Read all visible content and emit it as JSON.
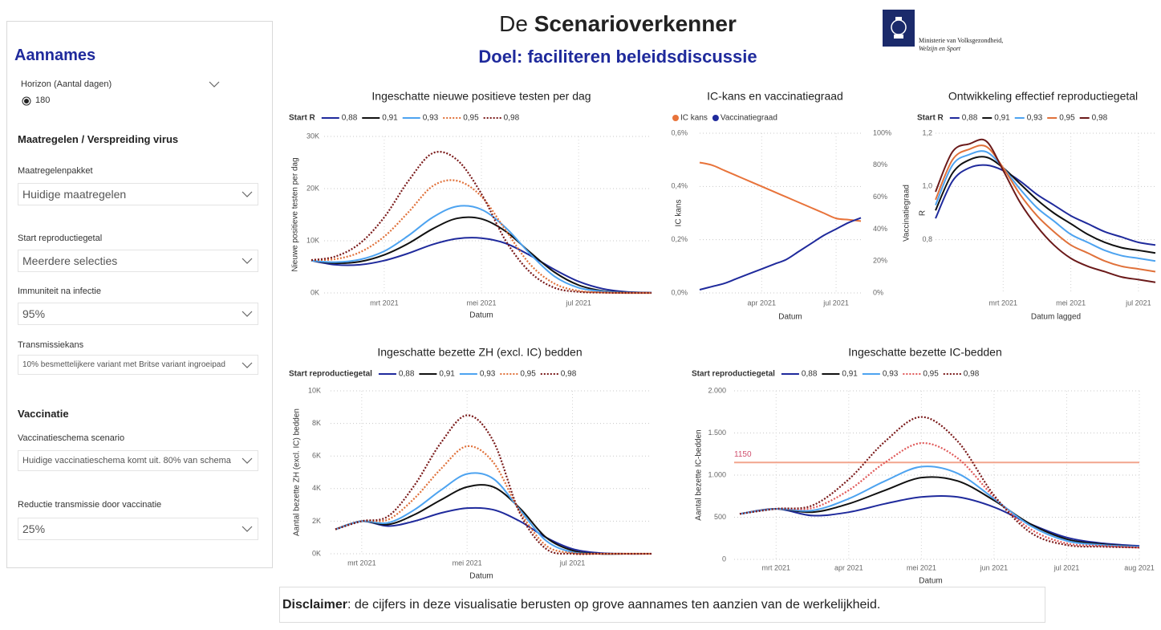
{
  "header": {
    "title_prefix": "De",
    "title_bold": "Scenarioverkenner",
    "subtitle": "Doel: faciliteren beleidsdiscussie",
    "ministry_line1": "Ministerie van Volksgezondheid,",
    "ministry_line2": "Welzijn en Sport"
  },
  "sidebar": {
    "title": "Aannames",
    "horizon_label": "Horizon (Aantal dagen)",
    "horizon_value": 180,
    "sections": [
      {
        "title": "Maatregelen / Verspreiding virus",
        "fields": [
          {
            "label": "Maatregelenpakket",
            "value": "Huidige maatregelen"
          },
          {
            "label": "Start reproductiegetal",
            "value": "Meerdere selecties"
          },
          {
            "label": "Immuniteit na infectie",
            "value": "95%"
          },
          {
            "label": "Transmissiekans",
            "value": "10% besmettelijkere variant met Britse variant ingroeipad"
          }
        ]
      },
      {
        "title": "Vaccinatie",
        "fields": [
          {
            "label": "Vaccinatieschema scenario",
            "value": "Huidige vaccinatieschema komt uit. 80% van schema"
          },
          {
            "label": "Reductie transmissie door vaccinatie",
            "value": "25%"
          }
        ]
      }
    ]
  },
  "chart_data": [
    {
      "type": "line",
      "title": "Ingeschatte nieuwe positieve testen per dag",
      "legend_title": "Start R",
      "y_label": "Nieuwe positieve testen per dag",
      "x_label": "Datum",
      "grid": true,
      "categories": [
        null,
        null,
        null,
        "mrt 2021",
        null,
        null,
        null,
        "mei 2021",
        null,
        null,
        null,
        "jul 2021",
        null,
        null,
        null
      ],
      "ylim": [
        0,
        30000
      ],
      "yticks": [
        {
          "value": 0,
          "label": "0K"
        },
        {
          "value": 10000,
          "label": "10K"
        },
        {
          "value": 20000,
          "label": "20K"
        },
        {
          "value": 30000,
          "label": "30K"
        }
      ],
      "series": [
        {
          "name": "0,88",
          "color": "#1f2a9c",
          "style": "solid",
          "values": [
            6200,
            5400,
            5400,
            6200,
            7600,
            9300,
            10400,
            10500,
            9500,
            7200,
            4500,
            2200,
            800,
            200,
            50
          ]
        },
        {
          "name": "0,91",
          "color": "#111111",
          "style": "solid",
          "values": [
            6200,
            5700,
            6000,
            7300,
            9500,
            12300,
            14300,
            14200,
            11800,
            7800,
            4000,
            1500,
            400,
            100,
            0
          ]
        },
        {
          "name": "0,93",
          "color": "#4da3f0",
          "style": "solid",
          "values": [
            6200,
            5900,
            6400,
            8000,
            11000,
            14500,
            16600,
            16000,
            12500,
            7500,
            3200,
            1000,
            300,
            50,
            0
          ]
        },
        {
          "name": "0,95",
          "color": "#e0713a",
          "style": "dotted",
          "values": [
            6300,
            6500,
            7800,
            10800,
            15500,
            20500,
            21500,
            18500,
            12000,
            5500,
            1800,
            400,
            100,
            0,
            0
          ]
        },
        {
          "name": "0,98",
          "color": "#7a1a1a",
          "style": "dotted",
          "values": [
            6300,
            7000,
            9500,
            14500,
            21500,
            26800,
            25500,
            19000,
            10000,
            4000,
            1000,
            200,
            50,
            0,
            0
          ]
        }
      ]
    },
    {
      "type": "line",
      "title": "IC-kans en vaccinatiegraad",
      "legend_marker": "circle",
      "y_label": "IC kans",
      "y2_label": "Vaccinatiegraad",
      "x_label": "Datum",
      "grid": true,
      "categories": [
        null,
        null,
        null,
        null,
        null,
        "apr 2021",
        null,
        null,
        null,
        null,
        null,
        "jul 2021",
        null,
        null
      ],
      "ylim": [
        0,
        0.6
      ],
      "yticks": [
        {
          "value": 0,
          "label": "0,0%"
        },
        {
          "value": 0.2,
          "label": "0,2%"
        },
        {
          "value": 0.4,
          "label": "0,4%"
        },
        {
          "value": 0.6,
          "label": "0,6%"
        }
      ],
      "y2lim": [
        0,
        100
      ],
      "y2ticks": [
        {
          "value": 0,
          "label": "0%"
        },
        {
          "value": 20,
          "label": "20%"
        },
        {
          "value": 40,
          "label": "40%"
        },
        {
          "value": 60,
          "label": "60%"
        },
        {
          "value": 80,
          "label": "80%"
        },
        {
          "value": 100,
          "label": "100%"
        }
      ],
      "series": [
        {
          "name": "IC kans",
          "color": "#e8733a",
          "style": "solid",
          "values": [
            0.49,
            0.48,
            0.46,
            0.44,
            0.42,
            0.4,
            0.38,
            0.36,
            0.34,
            0.32,
            0.3,
            0.28,
            0.275,
            0.27
          ]
        },
        {
          "name": "Vaccinatiegraad",
          "color": "#1f2a9c",
          "style": "solid",
          "axis": "y2",
          "values": [
            2,
            4,
            6,
            9,
            12,
            15,
            18,
            21,
            26,
            31,
            36,
            40,
            44,
            47
          ]
        }
      ]
    },
    {
      "type": "line",
      "title": "Ontwikkeling effectief reproductiegetal",
      "legend_title": "Start R",
      "y_label": "R",
      "x_label": "Datum lagged",
      "grid": true,
      "categories": [
        null,
        null,
        null,
        null,
        "mrt 2021",
        null,
        null,
        null,
        "mei 2021",
        null,
        null,
        null,
        "jul 2021",
        null
      ],
      "ylim": [
        0.6,
        1.2
      ],
      "yticks": [
        {
          "value": 0.8,
          "label": "0,8"
        },
        {
          "value": 1.0,
          "label": "1,0"
        },
        {
          "value": 1.2,
          "label": "1,2"
        }
      ],
      "series": [
        {
          "name": "0,88",
          "color": "#1f2a9c",
          "style": "solid",
          "values": [
            0.88,
            1.02,
            1.07,
            1.08,
            1.06,
            1.02,
            0.97,
            0.93,
            0.89,
            0.86,
            0.83,
            0.81,
            0.79,
            0.78
          ]
        },
        {
          "name": "0,91",
          "color": "#111111",
          "style": "solid",
          "values": [
            0.91,
            1.05,
            1.1,
            1.11,
            1.07,
            1.01,
            0.95,
            0.9,
            0.86,
            0.82,
            0.79,
            0.77,
            0.76,
            0.75
          ]
        },
        {
          "name": "0,93",
          "color": "#4da3f0",
          "style": "solid",
          "values": [
            0.93,
            1.08,
            1.12,
            1.13,
            1.07,
            0.99,
            0.92,
            0.87,
            0.82,
            0.79,
            0.76,
            0.74,
            0.73,
            0.72
          ]
        },
        {
          "name": "0,95",
          "color": "#e0713a",
          "style": "solid",
          "values": [
            0.95,
            1.1,
            1.14,
            1.15,
            1.07,
            0.97,
            0.89,
            0.83,
            0.78,
            0.75,
            0.72,
            0.7,
            0.69,
            0.68
          ]
        },
        {
          "name": "0,98",
          "color": "#6b1a1a",
          "style": "solid",
          "values": [
            0.98,
            1.13,
            1.16,
            1.17,
            1.06,
            0.94,
            0.85,
            0.78,
            0.73,
            0.7,
            0.68,
            0.66,
            0.65,
            0.64
          ]
        }
      ]
    },
    {
      "type": "line",
      "title": "Ingeschatte bezette ZH (excl. IC) bedden",
      "legend_title": "Start reproductiegetal",
      "y_label": "Aantal bezette ZH (excl. IC) bedden",
      "x_label": "Datum",
      "grid": true,
      "categories": [
        null,
        "mrt 2021",
        null,
        null,
        null,
        "mei 2021",
        null,
        null,
        null,
        "jul 2021",
        null,
        null,
        null
      ],
      "ylim": [
        0,
        10000
      ],
      "yticks": [
        {
          "value": 0,
          "label": "0K"
        },
        {
          "value": 2000,
          "label": "2K"
        },
        {
          "value": 4000,
          "label": "4K"
        },
        {
          "value": 6000,
          "label": "6K"
        },
        {
          "value": 8000,
          "label": "8K"
        },
        {
          "value": 10000,
          "label": "10K"
        }
      ],
      "series": [
        {
          "name": "0,88",
          "color": "#1f2a9c",
          "style": "solid",
          "values": [
            1500,
            2000,
            1700,
            2000,
            2500,
            2800,
            2700,
            2000,
            1000,
            300,
            50,
            0,
            0
          ]
        },
        {
          "name": "0,91",
          "color": "#111111",
          "style": "solid",
          "values": [
            1500,
            2000,
            1800,
            2400,
            3300,
            4100,
            4100,
            2800,
            1000,
            200,
            0,
            0,
            0
          ]
        },
        {
          "name": "0,93",
          "color": "#4da3f0",
          "style": "solid",
          "values": [
            1500,
            2000,
            1900,
            2700,
            3900,
            4900,
            4600,
            2700,
            800,
            100,
            0,
            0,
            0
          ]
        },
        {
          "name": "0,95",
          "color": "#e0713a",
          "style": "dotted",
          "values": [
            1500,
            2000,
            2100,
            3400,
            5200,
            6600,
            5600,
            2600,
            500,
            50,
            0,
            0,
            0
          ]
        },
        {
          "name": "0,98",
          "color": "#7a1a1a",
          "style": "dotted",
          "values": [
            1500,
            2000,
            2300,
            4200,
            6800,
            8500,
            6900,
            2500,
            300,
            0,
            0,
            0,
            0
          ]
        }
      ]
    },
    {
      "type": "line",
      "title": "Ingeschatte bezette IC-bedden",
      "legend_title": "Start reproductiegetal",
      "y_label": "Aantal bezette IC-bedden",
      "x_label": "Datum",
      "grid": true,
      "categories": [
        null,
        "mrt 2021",
        null,
        "apr 2021",
        null,
        "mei 2021",
        null,
        "jun 2021",
        null,
        "jul 2021",
        null,
        "aug 2021"
      ],
      "ylim": [
        0,
        2000
      ],
      "yticks": [
        0,
        500,
        {
          "value": 1000,
          "label": "1.000"
        },
        {
          "value": 1500,
          "label": "1.500"
        },
        {
          "value": 2000,
          "label": "2.000"
        }
      ],
      "reference_line": {
        "value": 1150,
        "color": "#f2a58e"
      },
      "series": [
        {
          "name": "0,88",
          "color": "#1f2a9c",
          "style": "solid",
          "values": [
            540,
            600,
            520,
            560,
            660,
            740,
            740,
            620,
            420,
            260,
            190,
            160
          ]
        },
        {
          "name": "0,91",
          "color": "#111111",
          "style": "solid",
          "values": [
            540,
            600,
            560,
            660,
            820,
            970,
            930,
            700,
            420,
            240,
            180,
            150
          ]
        },
        {
          "name": "0,93",
          "color": "#4da3f0",
          "style": "solid",
          "values": [
            540,
            600,
            580,
            720,
            930,
            1100,
            1020,
            720,
            400,
            220,
            170,
            150
          ]
        },
        {
          "name": "0,95",
          "color": "#e05a5a",
          "style": "dotted",
          "values": [
            540,
            600,
            610,
            820,
            1150,
            1380,
            1200,
            740,
            360,
            190,
            160,
            140
          ]
        },
        {
          "name": "0,98",
          "color": "#7a1a1a",
          "style": "dotted",
          "values": [
            540,
            600,
            640,
            950,
            1400,
            1690,
            1400,
            760,
            320,
            170,
            150,
            140
          ]
        }
      ]
    }
  ],
  "disclaimer": {
    "bold": "Disclaimer",
    "text": ": de cijfers in deze visualisatie berusten op grove aannames ten aanzien van de werkelijkheid."
  }
}
